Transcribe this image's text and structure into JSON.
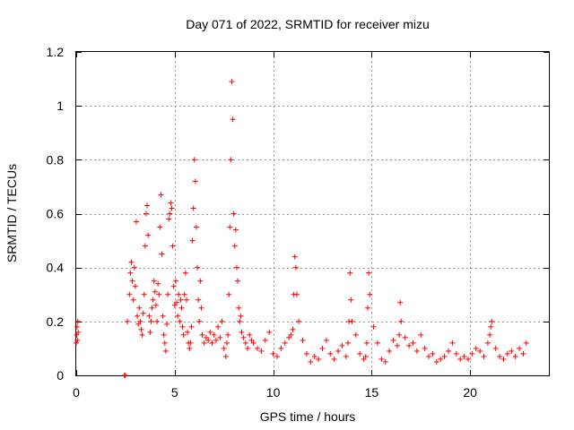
{
  "chart_data": {
    "type": "scatter",
    "title": "Day 071 of 2022, SRMTID for receiver mizu",
    "xlabel": "GPS time / hours",
    "ylabel": "SRMTID / TECUs",
    "xlim": [
      0,
      24
    ],
    "ylim": [
      0,
      1.2
    ],
    "xticks": [
      0,
      5,
      10,
      15,
      20
    ],
    "xtick_labels": [
      "0",
      "5",
      "10",
      "15",
      "20"
    ],
    "yticks": [
      0,
      0.2,
      0.4,
      0.6,
      0.8,
      1,
      1.2
    ],
    "ytick_labels": [
      "0",
      "0.2",
      "0.4",
      "0.6",
      "0.8",
      "1",
      "1.2"
    ],
    "grid": true,
    "marker": "plus",
    "color": "#ff0000",
    "series": [
      {
        "name": "mizu",
        "x": [
          0.0,
          0.02,
          0.04,
          0.06,
          0.08,
          0.1,
          2.45,
          2.5,
          2.6,
          2.7,
          2.75,
          2.8,
          2.85,
          2.9,
          2.95,
          3.0,
          3.05,
          3.1,
          3.15,
          3.2,
          3.25,
          3.3,
          3.35,
          3.4,
          3.45,
          3.5,
          3.55,
          3.6,
          3.65,
          3.7,
          3.75,
          3.8,
          3.85,
          3.9,
          3.95,
          4.0,
          4.05,
          4.1,
          4.15,
          4.2,
          4.25,
          4.3,
          4.35,
          4.4,
          4.45,
          4.5,
          4.55,
          4.6,
          4.65,
          4.7,
          4.75,
          4.8,
          4.85,
          4.9,
          4.95,
          5.0,
          5.05,
          5.1,
          5.15,
          5.2,
          5.25,
          5.3,
          5.35,
          5.4,
          5.45,
          5.5,
          5.55,
          5.6,
          5.65,
          5.7,
          5.75,
          5.8,
          5.85,
          5.9,
          5.95,
          6.0,
          6.05,
          6.1,
          6.15,
          6.2,
          6.25,
          6.3,
          6.35,
          6.4,
          6.5,
          6.6,
          6.7,
          6.8,
          6.9,
          7.0,
          7.1,
          7.2,
          7.3,
          7.4,
          7.5,
          7.6,
          7.65,
          7.7,
          7.75,
          7.8,
          7.85,
          7.9,
          7.95,
          8.0,
          8.05,
          8.1,
          8.15,
          8.2,
          8.25,
          8.3,
          8.35,
          8.4,
          8.5,
          8.6,
          8.7,
          8.8,
          8.9,
          9.0,
          9.2,
          9.4,
          9.6,
          9.8,
          10.0,
          10.2,
          10.4,
          10.6,
          10.8,
          10.9,
          11.0,
          11.05,
          11.1,
          11.15,
          11.2,
          11.3,
          11.5,
          11.7,
          11.9,
          12.1,
          12.3,
          12.5,
          12.7,
          12.9,
          13.1,
          13.3,
          13.5,
          13.7,
          13.8,
          13.85,
          13.9,
          13.95,
          14.0,
          14.2,
          14.4,
          14.6,
          14.7,
          14.75,
          14.8,
          14.85,
          14.9,
          15.1,
          15.3,
          15.5,
          15.7,
          15.9,
          16.1,
          16.3,
          16.4,
          16.45,
          16.5,
          16.7,
          16.9,
          17.1,
          17.3,
          17.5,
          17.7,
          17.9,
          18.1,
          18.3,
          18.5,
          18.7,
          18.9,
          19.1,
          19.3,
          19.5,
          19.7,
          19.9,
          20.1,
          20.3,
          20.5,
          20.7,
          20.9,
          21.0,
          21.05,
          21.1,
          21.3,
          21.5,
          21.7,
          21.9,
          22.1,
          22.3,
          22.5,
          22.7,
          22.85
        ],
        "y": [
          0.12,
          0.15,
          0.18,
          0.13,
          0.2,
          0.16,
          0.0,
          0.0,
          0.2,
          0.3,
          0.38,
          0.42,
          0.35,
          0.28,
          0.4,
          0.33,
          0.57,
          0.22,
          0.19,
          0.25,
          0.2,
          0.17,
          0.15,
          0.23,
          0.3,
          0.48,
          0.6,
          0.63,
          0.52,
          0.22,
          0.16,
          0.2,
          0.25,
          0.28,
          0.35,
          0.31,
          0.26,
          0.2,
          0.34,
          0.3,
          0.55,
          0.67,
          0.45,
          0.22,
          0.15,
          0.12,
          0.09,
          0.19,
          0.3,
          0.58,
          0.6,
          0.64,
          0.62,
          0.48,
          0.33,
          0.26,
          0.35,
          0.27,
          0.22,
          0.3,
          0.2,
          0.28,
          0.25,
          0.18,
          0.15,
          0.3,
          0.38,
          0.28,
          0.16,
          0.12,
          0.1,
          0.12,
          0.18,
          0.5,
          0.62,
          0.8,
          0.72,
          0.55,
          0.4,
          0.28,
          0.2,
          0.35,
          0.25,
          0.15,
          0.12,
          0.14,
          0.13,
          0.16,
          0.12,
          0.15,
          0.13,
          0.18,
          0.14,
          0.2,
          0.1,
          0.07,
          0.12,
          0.15,
          0.3,
          0.55,
          0.8,
          1.09,
          0.95,
          0.6,
          0.48,
          0.54,
          0.4,
          0.35,
          0.25,
          0.2,
          0.22,
          0.16,
          0.14,
          0.12,
          0.1,
          0.15,
          0.13,
          0.12,
          0.1,
          0.09,
          0.13,
          0.16,
          0.08,
          0.07,
          0.1,
          0.12,
          0.14,
          0.15,
          0.17,
          0.3,
          0.44,
          0.4,
          0.3,
          0.2,
          0.13,
          0.08,
          0.05,
          0.07,
          0.06,
          0.1,
          0.13,
          0.08,
          0.06,
          0.09,
          0.11,
          0.07,
          0.12,
          0.2,
          0.38,
          0.28,
          0.2,
          0.15,
          0.08,
          0.06,
          0.07,
          0.12,
          0.25,
          0.38,
          0.3,
          0.18,
          0.12,
          0.06,
          0.05,
          0.09,
          0.13,
          0.11,
          0.15,
          0.27,
          0.2,
          0.14,
          0.11,
          0.12,
          0.09,
          0.15,
          0.1,
          0.07,
          0.08,
          0.05,
          0.06,
          0.07,
          0.09,
          0.12,
          0.08,
          0.06,
          0.07,
          0.06,
          0.08,
          0.1,
          0.09,
          0.07,
          0.12,
          0.15,
          0.18,
          0.2,
          0.1,
          0.07,
          0.06,
          0.08,
          0.09,
          0.07,
          0.1,
          0.08,
          0.12
        ]
      }
    ]
  }
}
